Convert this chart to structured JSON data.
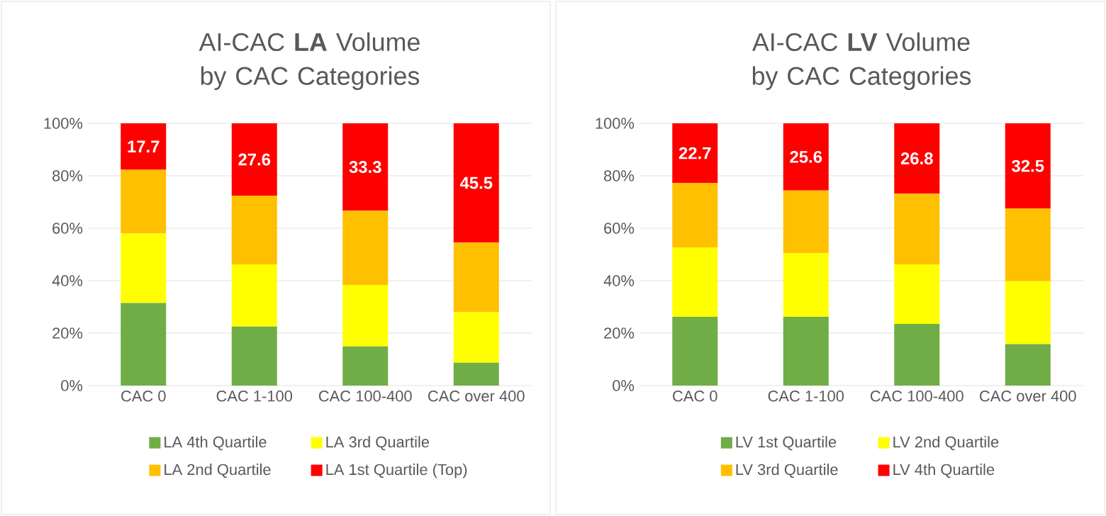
{
  "chart_data": [
    {
      "type": "bar",
      "title": "AI-CAC **LA** Volume by CAC Categories",
      "categories": [
        "CAC 0",
        "CAC 1-100",
        "CAC 100-400",
        "CAC over 400"
      ],
      "stacked": true,
      "ylim": [
        0,
        100
      ],
      "yticks": [
        {
          "value": 0,
          "label": "0%"
        },
        {
          "value": 20,
          "label": "20%"
        },
        {
          "value": 40,
          "label": "40%"
        },
        {
          "value": 60,
          "label": "60%"
        },
        {
          "value": 80,
          "label": "80%"
        },
        {
          "value": 100,
          "label": "100%"
        }
      ],
      "grid": "y",
      "legend": "bottom",
      "series": [
        {
          "name": "LA 4th Quartile",
          "color": "#70ad47",
          "values": [
            31.5,
            22.5,
            14.9,
            8.7
          ]
        },
        {
          "name": "LA 3rd Quartile",
          "color": "#ffff00",
          "values": [
            26.5,
            23.7,
            23.5,
            19.3
          ]
        },
        {
          "name": "LA 2nd Quartile",
          "color": "#ffc000",
          "values": [
            24.3,
            26.2,
            28.3,
            26.5
          ]
        },
        {
          "name": "LA 1st Quartile (Top)",
          "color": "#ff0000",
          "values": [
            17.7,
            27.6,
            33.3,
            45.5
          ],
          "value_labels": [
            "17.7",
            "27.6",
            "33.3",
            "45.5"
          ]
        }
      ]
    },
    {
      "type": "bar",
      "title": "AI-CAC **LV** Volume by CAC Categories",
      "categories": [
        "CAC 0",
        "CAC 1-100",
        "CAC 100-400",
        "CAC over 400"
      ],
      "stacked": true,
      "ylim": [
        0,
        100
      ],
      "yticks": [
        {
          "value": 0,
          "label": "0%"
        },
        {
          "value": 20,
          "label": "20%"
        },
        {
          "value": 40,
          "label": "40%"
        },
        {
          "value": 60,
          "label": "60%"
        },
        {
          "value": 80,
          "label": "80%"
        },
        {
          "value": 100,
          "label": "100%"
        }
      ],
      "grid": "y",
      "legend": "bottom",
      "series": [
        {
          "name": "LV 1st Quartile",
          "color": "#70ad47",
          "values": [
            26.2,
            26.2,
            23.5,
            15.8
          ]
        },
        {
          "name": "LV 2nd Quartile",
          "color": "#ffff00",
          "values": [
            26.5,
            24.3,
            22.7,
            24.0
          ]
        },
        {
          "name": "LV 3rd Quartile",
          "color": "#ffc000",
          "values": [
            24.6,
            23.9,
            27.0,
            27.7
          ]
        },
        {
          "name": "LV 4th Quartile",
          "color": "#ff0000",
          "values": [
            22.7,
            25.6,
            26.8,
            32.5
          ],
          "value_labels": [
            "22.7",
            "25.6",
            "26.8",
            "32.5"
          ]
        }
      ]
    }
  ]
}
